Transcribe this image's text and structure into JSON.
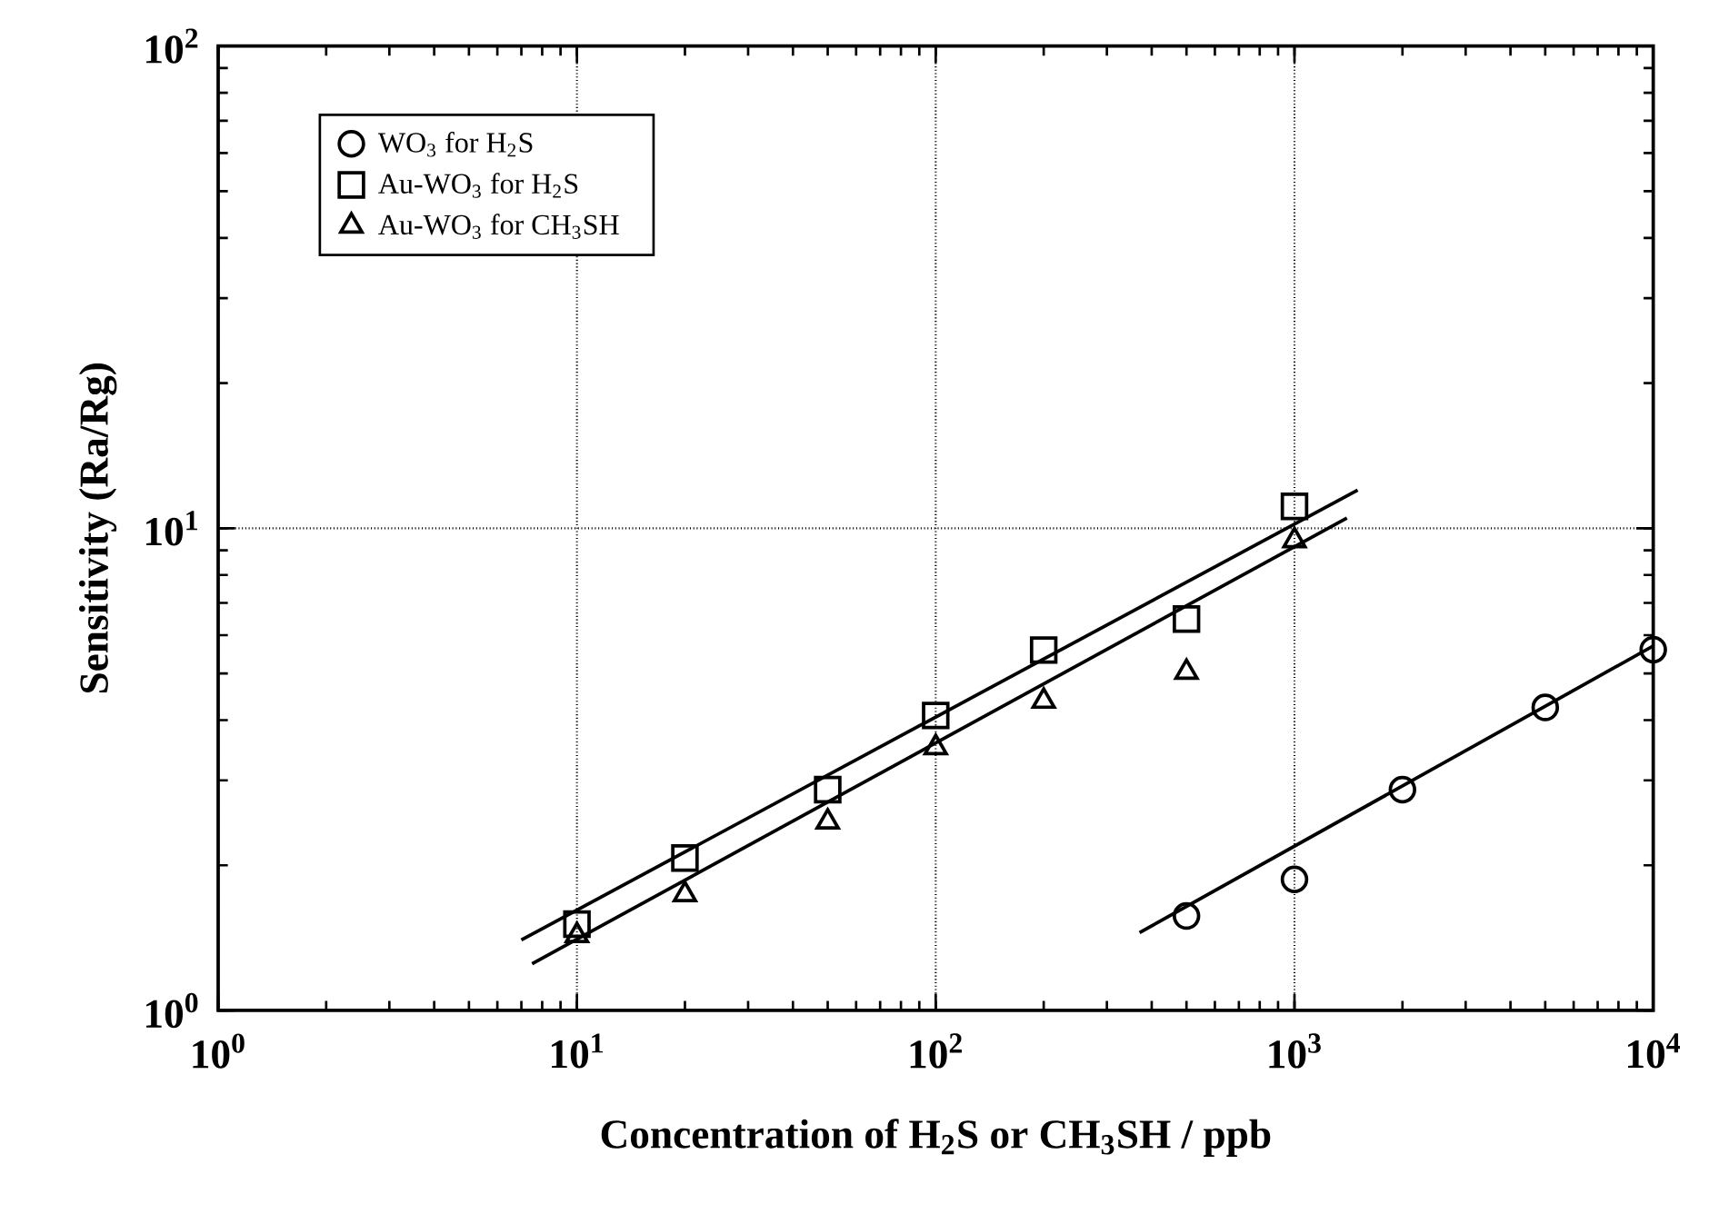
{
  "chart_data": {
    "type": "scatter",
    "xlabel": "Concentration of H$_{2}$S or CH$_{3}$SH  /  ppb",
    "ylabel": "Sensitivity  (Ra/Rg)",
    "log": "xy",
    "grid": true,
    "legend": "top left",
    "xlim": [
      1,
      10000
    ],
    "ylim": [
      1,
      100
    ],
    "xticks": [
      {
        "value": 1,
        "label": "10$^{0}$"
      },
      {
        "value": 10,
        "label": "10$^{1}$"
      },
      {
        "value": 100,
        "label": "10$^{2}$"
      },
      {
        "value": 1000,
        "label": "10$^{3}$"
      },
      {
        "value": 10000,
        "label": "10$^{4}$"
      }
    ],
    "yticks": [
      {
        "value": 1,
        "label": "10$^{0}$"
      },
      {
        "value": 10,
        "label": "10$^{1}$"
      },
      {
        "value": 100,
        "label": "10$^{2}$"
      }
    ],
    "series": [
      {
        "name": "WO$_{3}$ for H$_{2}$S",
        "marker": "circle",
        "color": "#000000",
        "x": [
          500,
          1000,
          2000,
          5000,
          10000
        ],
        "values": [
          1.57,
          1.87,
          2.87,
          4.25,
          5.6
        ]
      },
      {
        "name": "Au-WO$_{3}$ for H$_{2}$S",
        "marker": "square",
        "color": "#000000",
        "x": [
          10,
          20,
          50,
          100,
          200,
          500,
          1000
        ],
        "values": [
          1.51,
          2.07,
          2.87,
          4.09,
          5.59,
          6.48,
          11.1
        ]
      },
      {
        "name": "Au-WO$_{3}$ for CH$_{3}$SH",
        "marker": "triangle",
        "color": "#000000",
        "x": [
          10,
          20,
          50,
          100,
          200,
          500,
          1000
        ],
        "values": [
          1.43,
          1.74,
          2.46,
          3.51,
          4.38,
          5.03,
          9.43
        ]
      },
      {
        "type": "line",
        "color": "#000000",
        "x": [
          370,
          10000
        ],
        "values": [
          1.45,
          5.7
        ]
      },
      {
        "type": "line",
        "color": "#000000",
        "x": [
          7,
          1500
        ],
        "values": [
          1.4,
          12
        ]
      },
      {
        "type": "line",
        "color": "#000000",
        "x": [
          7.5,
          1400
        ],
        "values": [
          1.25,
          10.5
        ]
      }
    ]
  }
}
